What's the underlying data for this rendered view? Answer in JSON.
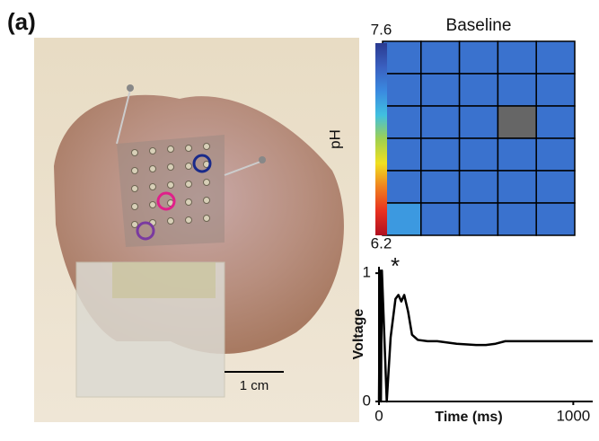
{
  "panel_label": "(a)",
  "photo": {
    "scale_bar_label": "1 cm"
  },
  "chart_data": [
    {
      "type": "heatmap",
      "title": "Baseline",
      "colorbar": {
        "label": "pH",
        "lim": [
          6.2,
          7.6
        ],
        "ticks": [
          6.2,
          7.6
        ],
        "colormap": [
          "#b01020",
          "#e83020",
          "#f08020",
          "#f0e020",
          "#a0d050",
          "#40c0e0",
          "#3a8ae0",
          "#3a60c0",
          "#2a3a90"
        ]
      },
      "null_color": "#666666",
      "values": [
        [
          7.35,
          7.35,
          7.35,
          7.35,
          7.35
        ],
        [
          7.35,
          7.35,
          7.35,
          7.35,
          7.35
        ],
        [
          7.35,
          7.35,
          7.35,
          null,
          7.35
        ],
        [
          7.35,
          7.35,
          7.35,
          7.35,
          7.35
        ],
        [
          7.35,
          7.35,
          7.35,
          7.35,
          7.35
        ],
        [
          7.2,
          7.35,
          7.35,
          7.35,
          7.35
        ]
      ]
    },
    {
      "type": "line",
      "xlabel": "Time (ms)",
      "ylabel": "Voltage",
      "annotation": "*",
      "color": "#000000",
      "x": [
        0,
        5,
        10,
        15,
        40,
        60,
        85,
        100,
        115,
        130,
        150,
        170,
        200,
        250,
        300,
        400,
        500,
        550,
        600,
        650,
        700,
        800,
        1000,
        1100
      ],
      "values": [
        0,
        1.02,
        0,
        1.02,
        0,
        0.5,
        0.8,
        0.83,
        0.78,
        0.83,
        0.7,
        0.52,
        0.48,
        0.47,
        0.47,
        0.45,
        0.44,
        0.44,
        0.45,
        0.47,
        0.47,
        0.47,
        0.47,
        0.47
      ],
      "xlim": [
        0,
        1100
      ],
      "ylim": [
        0,
        1.05
      ],
      "xticks": [
        0,
        1000
      ],
      "yticks": [
        0,
        1
      ]
    }
  ]
}
